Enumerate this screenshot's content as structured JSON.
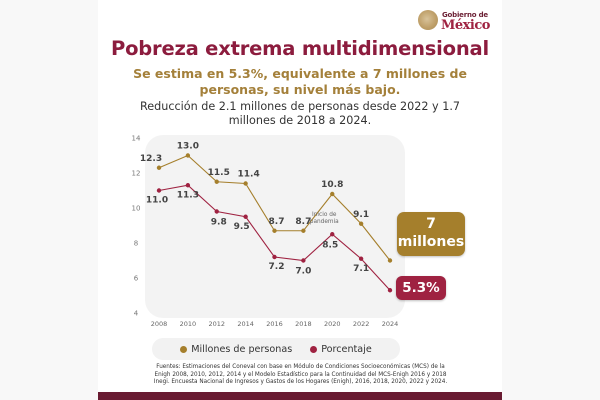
{
  "header": {
    "logo_line1": "Gobierno de",
    "logo_line2": "México"
  },
  "title": "Pobreza extrema multidimensional",
  "subtitle": "Se estima en 5.3%, equivalente a 7 millones de personas, su nivel más bajo.",
  "description": "Reducción de 2.1 millones de personas desde 2022 y 1.7 millones de 2018 a 2024.",
  "callouts": {
    "millones_value": "7",
    "millones_unit": "millones",
    "percent": "5.3%"
  },
  "annotation": {
    "line1": "Inicio de",
    "line2": "pandemia"
  },
  "colors": {
    "gold": "#a57f2c",
    "maroon": "#9f2241",
    "title": "#8c1c3e",
    "footer": "#691b32"
  },
  "chart_data": {
    "type": "line",
    "title": "",
    "xlabel": "",
    "ylabel": "",
    "x": [
      "2008",
      "2010",
      "2012",
      "2014",
      "2016",
      "2018",
      "2020",
      "2022",
      "2024"
    ],
    "ylim": [
      4,
      14
    ],
    "yticks": [
      "4",
      "6",
      "8",
      "10",
      "12",
      "14"
    ],
    "grid": false,
    "legend_position": "bottom",
    "series": [
      {
        "name": "Millones de personas",
        "color": "#a57f2c",
        "values": [
          12.3,
          13.0,
          11.5,
          11.4,
          8.7,
          8.7,
          10.8,
          9.1,
          7.0
        ],
        "labels": [
          "12.3",
          "13.0",
          "11.5",
          "11.4",
          "8.7",
          "8.7",
          "10.8",
          "9.1",
          ""
        ]
      },
      {
        "name": "Porcentaje",
        "color": "#9f2241",
        "values": [
          11.0,
          11.3,
          9.8,
          9.5,
          7.2,
          7.0,
          8.5,
          7.1,
          5.3
        ],
        "labels": [
          "11.0",
          "11.3",
          "9.8",
          "9.5",
          "7.2",
          "7.0",
          "8.5",
          "7.1",
          ""
        ]
      }
    ],
    "annotations": [
      {
        "x": "2020",
        "text": "Inicio de pandemia"
      }
    ]
  },
  "legend": [
    {
      "label": "Millones de personas",
      "color": "#a57f2c"
    },
    {
      "label": "Porcentaje",
      "color": "#9f2241"
    }
  ],
  "sources": {
    "line1": "Fuentes: Estimaciones del Coneval con base en Módulo de Condiciones Socioeconómicas (MCS) de la",
    "line2": "Enigh 2008, 2010, 2012, 2014 y el Modelo Estadístico para la Continuidad del MCS-Enigh 2016 y 2018",
    "line3": "Inegi. Encuesta Nacional de Ingresos y Gastos de los Hogares (Enigh), 2016, 2018, 2020, 2022 y 2024."
  }
}
